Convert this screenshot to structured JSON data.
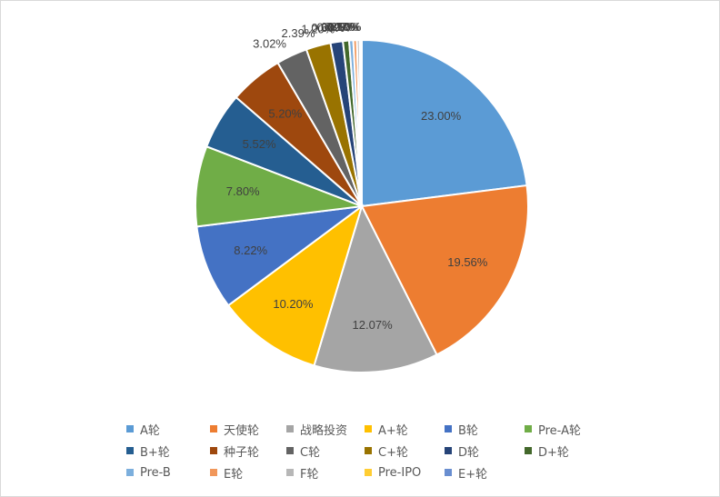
{
  "chart_data": {
    "type": "pie",
    "title": "",
    "slices": [
      {
        "label": "A轮",
        "value": 23.0,
        "value_label": "23.00%",
        "color": "#5B9BD5"
      },
      {
        "label": "天使轮",
        "value": 19.56,
        "value_label": "19.56%",
        "color": "#ED7D31"
      },
      {
        "label": "战略投资",
        "value": 12.07,
        "value_label": "12.07%",
        "color": "#A5A5A5"
      },
      {
        "label": "A+轮",
        "value": 10.2,
        "value_label": "10.20%",
        "color": "#FFC000"
      },
      {
        "label": "B轮",
        "value": 8.22,
        "value_label": "8.22%",
        "color": "#4472C4"
      },
      {
        "label": "Pre-A轮",
        "value": 7.8,
        "value_label": "7.80%",
        "color": "#70AD47"
      },
      {
        "label": "B+轮",
        "value": 5.52,
        "value_label": "5.52%",
        "color": "#255E91"
      },
      {
        "label": "种子轮",
        "value": 5.2,
        "value_label": "5.20%",
        "color": "#9E480E"
      },
      {
        "label": "C轮",
        "value": 3.02,
        "value_label": "3.02%",
        "color": "#636363"
      },
      {
        "label": "C+轮",
        "value": 2.39,
        "value_label": "2.39%",
        "color": "#997300"
      },
      {
        "label": "D轮",
        "value": 1.2,
        "value_label": "1.20%",
        "color": "#264478"
      },
      {
        "label": "D+轮",
        "value": 0.6,
        "value_label": "0.60%",
        "color": "#43682B"
      },
      {
        "label": "Pre-B",
        "value": 0.4,
        "value_label": "0.40%",
        "color": "#7CAFDD"
      },
      {
        "label": "E轮",
        "value": 0.35,
        "value_label": "0.35%",
        "color": "#F1975A"
      },
      {
        "label": "F轮",
        "value": 0.27,
        "value_label": "0.27%",
        "color": "#B7B7B7"
      },
      {
        "label": "Pre-IPO",
        "value": 0.1,
        "value_label": "0.10%",
        "color": "#FFCD33"
      },
      {
        "label": "E+轮",
        "value": 0.1,
        "value_label": "0.10%",
        "color": "#698ED0"
      }
    ],
    "legend_position": "bottom"
  }
}
